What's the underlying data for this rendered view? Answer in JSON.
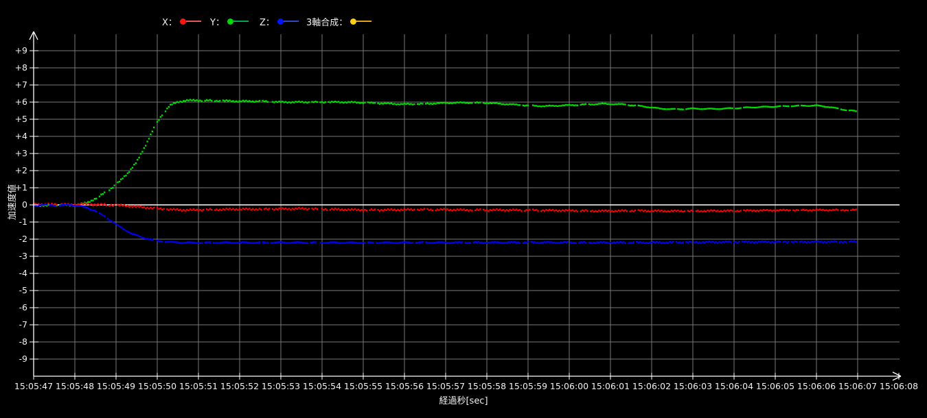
{
  "window": {
    "background": "#000000"
  },
  "colors": {
    "axis": "#ffffff",
    "grid": "#787878",
    "zero_line": "#ffffff",
    "tick_text": "#f0f0f0"
  },
  "legend": {
    "position": "top",
    "items": [
      {
        "id": "x",
        "label": "X：",
        "marker_color": "#ff1414",
        "line_color": "#e05858"
      },
      {
        "id": "y",
        "label": "Y：",
        "marker_color": "#00d800",
        "line_color": "#00a850"
      },
      {
        "id": "z",
        "label": "Z：",
        "marker_color": "#0014ff",
        "line_color": "#3048c0"
      },
      {
        "id": "composite",
        "label": "3軸合成：",
        "marker_color": "#ffd014",
        "line_color": "#e8a020"
      }
    ]
  },
  "chart_data": {
    "type": "scatter",
    "title": "",
    "xlabel": "経過秒[sec]",
    "ylabel": "加速度値",
    "grid": "on",
    "legend_position": "top",
    "zero_line": true,
    "ylim": [
      -10,
      10
    ],
    "x_seconds_range": [
      0,
      21
    ],
    "x_tick_labels": [
      "15:05:47",
      "15:05:48",
      "15:05:49",
      "15:05:50",
      "15:05:51",
      "15:05:52",
      "15:05:53",
      "15:05:54",
      "15:05:55",
      "15:05:56",
      "15:05:57",
      "15:05:58",
      "15:05:59",
      "15:06:00",
      "15:06:01",
      "15:06:02",
      "15:06:03",
      "15:06:04",
      "15:06:05",
      "15:06:06",
      "15:06:07",
      "15:06:08"
    ],
    "y_ticks": [
      {
        "value": 9,
        "label": "+9"
      },
      {
        "value": 8,
        "label": "+8"
      },
      {
        "value": 7,
        "label": "+7"
      },
      {
        "value": 6,
        "label": "+6"
      },
      {
        "value": 5,
        "label": "+5"
      },
      {
        "value": 4,
        "label": "+4"
      },
      {
        "value": 3,
        "label": "+3"
      },
      {
        "value": 2,
        "label": "+2"
      },
      {
        "value": 1,
        "label": "+1"
      },
      {
        "value": 0,
        "label": "0"
      },
      {
        "value": -1,
        "label": "-1"
      },
      {
        "value": -2,
        "label": "-2"
      },
      {
        "value": -3,
        "label": "-3"
      },
      {
        "value": -4,
        "label": "-4"
      },
      {
        "value": -5,
        "label": "-5"
      },
      {
        "value": -6,
        "label": "-6"
      },
      {
        "value": -7,
        "label": "-7"
      },
      {
        "value": -8,
        "label": "-8"
      },
      {
        "value": -9,
        "label": "-9"
      }
    ],
    "series": [
      {
        "name": "X",
        "color": "#ff0000",
        "points": [
          [
            0,
            0.06
          ],
          [
            0.3,
            0.02
          ],
          [
            0.6,
            0.05
          ],
          [
            0.9,
            0.0
          ],
          [
            1.2,
            0.05
          ],
          [
            1.5,
            0.03
          ],
          [
            1.8,
            0.0
          ],
          [
            2.1,
            -0.03
          ],
          [
            2.4,
            -0.08
          ],
          [
            2.7,
            -0.15
          ],
          [
            3.0,
            -0.22
          ],
          [
            3.3,
            -0.27
          ],
          [
            3.6,
            -0.3
          ],
          [
            4.0,
            -0.3
          ],
          [
            4.5,
            -0.27
          ],
          [
            5.0,
            -0.25
          ],
          [
            5.5,
            -0.25
          ],
          [
            6.0,
            -0.24
          ],
          [
            6.5,
            -0.22
          ],
          [
            7.0,
            -0.25
          ],
          [
            7.5,
            -0.27
          ],
          [
            8.0,
            -0.3
          ],
          [
            8.5,
            -0.3
          ],
          [
            9.0,
            -0.28
          ],
          [
            9.5,
            -0.28
          ],
          [
            10.0,
            -0.28
          ],
          [
            10.5,
            -0.3
          ],
          [
            11.0,
            -0.3
          ],
          [
            11.5,
            -0.3
          ],
          [
            12.0,
            -0.31
          ],
          [
            12.5,
            -0.32
          ],
          [
            13.0,
            -0.33
          ],
          [
            13.5,
            -0.35
          ],
          [
            14.0,
            -0.36
          ],
          [
            14.5,
            -0.34
          ],
          [
            15.0,
            -0.35
          ],
          [
            15.5,
            -0.36
          ],
          [
            16.0,
            -0.36
          ],
          [
            16.5,
            -0.35
          ],
          [
            17.0,
            -0.35
          ],
          [
            17.5,
            -0.33
          ],
          [
            18.0,
            -0.32
          ],
          [
            18.5,
            -0.31
          ],
          [
            19.0,
            -0.3
          ],
          [
            19.5,
            -0.3
          ],
          [
            20.0,
            -0.3
          ]
        ]
      },
      {
        "name": "Y",
        "color": "#00dd00",
        "points": [
          [
            0,
            0.0
          ],
          [
            0.3,
            -0.05
          ],
          [
            0.6,
            0.02
          ],
          [
            0.9,
            -0.03
          ],
          [
            1.1,
            0.03
          ],
          [
            1.3,
            0.12
          ],
          [
            1.6,
            0.5
          ],
          [
            1.9,
            1.0
          ],
          [
            2.1,
            1.4
          ],
          [
            2.3,
            1.9
          ],
          [
            2.5,
            2.5
          ],
          [
            2.7,
            3.4
          ],
          [
            2.9,
            4.4
          ],
          [
            3.1,
            5.2
          ],
          [
            3.3,
            5.8
          ],
          [
            3.5,
            6.0
          ],
          [
            3.7,
            6.1
          ],
          [
            4.0,
            6.1
          ],
          [
            4.5,
            6.08
          ],
          [
            5.0,
            6.05
          ],
          [
            5.5,
            6.05
          ],
          [
            6.0,
            6.0
          ],
          [
            6.5,
            6.0
          ],
          [
            7.0,
            6.0
          ],
          [
            7.5,
            6.0
          ],
          [
            8.0,
            5.97
          ],
          [
            8.5,
            5.92
          ],
          [
            9.0,
            5.88
          ],
          [
            9.5,
            5.9
          ],
          [
            10.0,
            5.95
          ],
          [
            10.5,
            5.97
          ],
          [
            11.0,
            5.95
          ],
          [
            11.5,
            5.88
          ],
          [
            12.0,
            5.8
          ],
          [
            12.4,
            5.76
          ],
          [
            12.8,
            5.8
          ],
          [
            13.3,
            5.85
          ],
          [
            13.8,
            5.9
          ],
          [
            14.3,
            5.87
          ],
          [
            14.8,
            5.75
          ],
          [
            15.2,
            5.62
          ],
          [
            15.6,
            5.58
          ],
          [
            16.0,
            5.62
          ],
          [
            16.5,
            5.6
          ],
          [
            17.0,
            5.64
          ],
          [
            17.5,
            5.7
          ],
          [
            18.0,
            5.74
          ],
          [
            18.5,
            5.78
          ],
          [
            19.0,
            5.8
          ],
          [
            19.3,
            5.72
          ],
          [
            19.6,
            5.58
          ],
          [
            20.0,
            5.45
          ]
        ]
      },
      {
        "name": "Z",
        "color": "#0000ff",
        "points": [
          [
            0,
            -0.02
          ],
          [
            0.3,
            0.0
          ],
          [
            0.6,
            -0.04
          ],
          [
            0.9,
            0.0
          ],
          [
            1.2,
            -0.1
          ],
          [
            1.5,
            -0.35
          ],
          [
            1.8,
            -0.8
          ],
          [
            2.1,
            -1.3
          ],
          [
            2.4,
            -1.7
          ],
          [
            2.7,
            -1.95
          ],
          [
            3.0,
            -2.1
          ],
          [
            3.3,
            -2.17
          ],
          [
            3.6,
            -2.2
          ],
          [
            4.0,
            -2.21
          ],
          [
            5.0,
            -2.2
          ],
          [
            6.0,
            -2.2
          ],
          [
            7.0,
            -2.2
          ],
          [
            8.0,
            -2.21
          ],
          [
            9.0,
            -2.2
          ],
          [
            10.0,
            -2.2
          ],
          [
            11.0,
            -2.2
          ],
          [
            12.0,
            -2.19
          ],
          [
            13.0,
            -2.2
          ],
          [
            14.0,
            -2.2
          ],
          [
            15.0,
            -2.2
          ],
          [
            16.0,
            -2.18
          ],
          [
            17.0,
            -2.17
          ],
          [
            18.0,
            -2.16
          ],
          [
            19.0,
            -2.16
          ],
          [
            20.0,
            -2.15
          ]
        ]
      },
      {
        "name": "3軸合成",
        "color": "#ffc800",
        "points": []
      }
    ]
  }
}
